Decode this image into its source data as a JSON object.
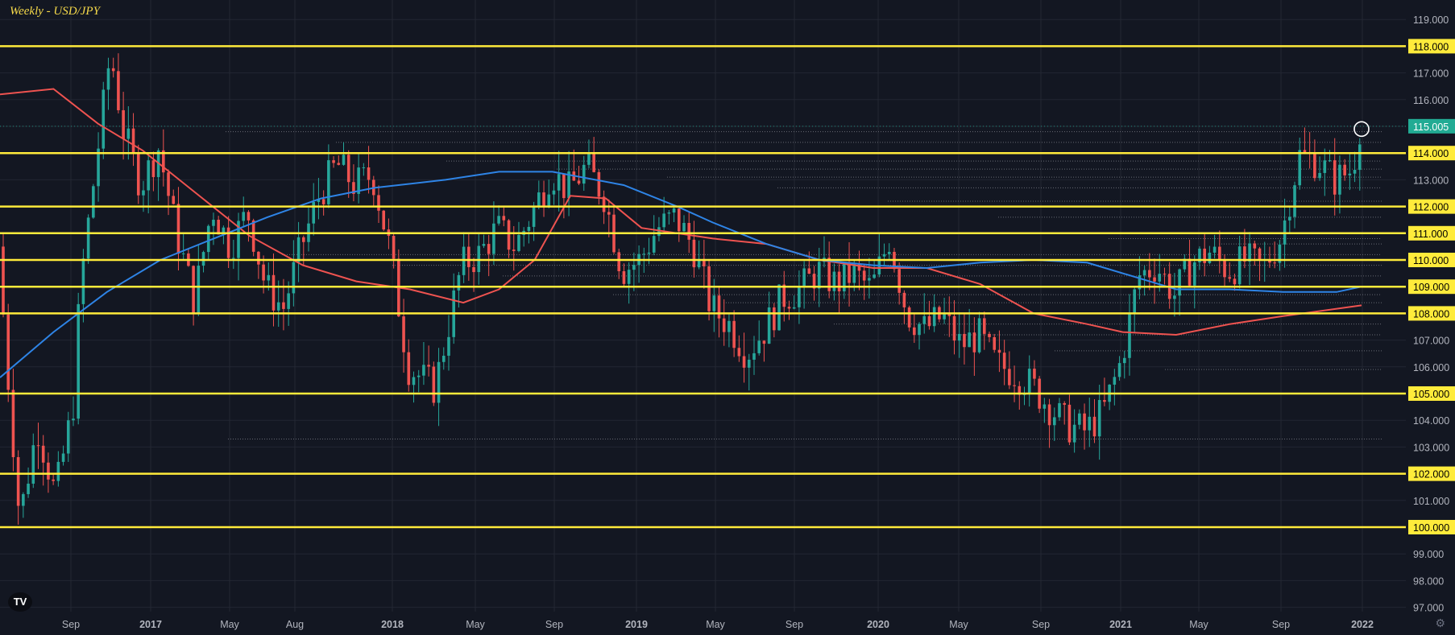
{
  "header": {
    "title": "Weekly - USD/JPY"
  },
  "logo_text": "TV",
  "chart_data": {
    "type": "candlestick",
    "title": "Weekly - USD/JPY",
    "ylim": [
      96.8,
      119.5
    ],
    "y_ticks": [
      "97.000",
      "98.000",
      "99.000",
      "100.000",
      "101.000",
      "102.000",
      "103.000",
      "104.000",
      "105.000",
      "106.000",
      "107.000",
      "108.000",
      "109.000",
      "110.000",
      "111.000",
      "112.000",
      "113.000",
      "114.000",
      "115.000",
      "116.000",
      "117.000",
      "118.000",
      "119.000"
    ],
    "x_ticks": [
      "Sep",
      "2017",
      "May",
      "Aug",
      "2018",
      "May",
      "Sep",
      "2019",
      "May",
      "Sep",
      "2020",
      "May",
      "Sep",
      "2021",
      "May",
      "Sep",
      "2022"
    ],
    "last_price": "115.005",
    "horizontal_levels": [
      118.0,
      114.0,
      112.0,
      111.0,
      110.0,
      109.0,
      108.0,
      105.0,
      102.0,
      100.0
    ],
    "dotted_levels": [
      114.8,
      114.4,
      113.7,
      113.4,
      113.1,
      112.7,
      112.2,
      111.6,
      110.8,
      110.6,
      110.2,
      109.8,
      109.4,
      108.7,
      108.4,
      107.6,
      107.2,
      106.6,
      105.9,
      103.3
    ],
    "price_path": [
      [
        0,
        110.5
      ],
      [
        0.5,
        106.0
      ],
      [
        1.2,
        100.3
      ],
      [
        2.2,
        103.8
      ],
      [
        3.2,
        101.2
      ],
      [
        4.2,
        104.5
      ],
      [
        4.6,
        109.0
      ],
      [
        5.6,
        114.2
      ],
      [
        6.3,
        117.8
      ],
      [
        7.0,
        114.9
      ],
      [
        8.0,
        112.8
      ],
      [
        9.0,
        114.2
      ],
      [
        10.0,
        111.0
      ],
      [
        11.0,
        108.5
      ],
      [
        12.0,
        112.0
      ],
      [
        13.0,
        110.5
      ],
      [
        14.0,
        111.8
      ],
      [
        15.0,
        109.0
      ],
      [
        16.0,
        108.2
      ],
      [
        17.0,
        110.5
      ],
      [
        18.0,
        112.4
      ],
      [
        19.0,
        113.6
      ],
      [
        20.0,
        112.8
      ],
      [
        21.0,
        113.2
      ],
      [
        22.0,
        110.3
      ],
      [
        23.0,
        106.0
      ],
      [
        24.5,
        105.2
      ],
      [
        26.0,
        109.8
      ],
      [
        27.0,
        110.2
      ],
      [
        28.0,
        111.2
      ],
      [
        29.0,
        110.5
      ],
      [
        30.0,
        111.8
      ],
      [
        31.0,
        113.3
      ],
      [
        32.0,
        112.6
      ],
      [
        33.0,
        113.5
      ],
      [
        34.0,
        112.4
      ],
      [
        35.0,
        109.6
      ],
      [
        36.0,
        110.0
      ],
      [
        37.0,
        111.2
      ],
      [
        38.0,
        111.6
      ],
      [
        39.0,
        110.5
      ],
      [
        40.0,
        108.2
      ],
      [
        41.0,
        107.6
      ],
      [
        42.0,
        106.5
      ],
      [
        43.0,
        107.4
      ],
      [
        44.0,
        108.6
      ],
      [
        45.0,
        108.9
      ],
      [
        46.0,
        109.6
      ],
      [
        47.0,
        109.1
      ],
      [
        48.0,
        109.5
      ],
      [
        49.0,
        108.9
      ],
      [
        50.0,
        110.8
      ],
      [
        51.0,
        108.0
      ],
      [
        52.0,
        107.4
      ],
      [
        53.0,
        107.9
      ],
      [
        54.0,
        106.8
      ],
      [
        55.0,
        107.2
      ],
      [
        56.0,
        106.1
      ],
      [
        57.0,
        105.8
      ],
      [
        58.0,
        105.3
      ],
      [
        59.0,
        104.5
      ],
      [
        60.0,
        103.8
      ],
      [
        61.0,
        103.6
      ],
      [
        62.0,
        104.3
      ],
      [
        63.0,
        106.2
      ],
      [
        64.0,
        109.4
      ],
      [
        65.0,
        109.8
      ],
      [
        66.0,
        108.7
      ],
      [
        67.0,
        109.9
      ],
      [
        68.0,
        110.3
      ],
      [
        69.0,
        109.6
      ],
      [
        70.0,
        110.0
      ],
      [
        71.0,
        109.7
      ],
      [
        72.0,
        110.9
      ],
      [
        73.0,
        113.9
      ],
      [
        74.0,
        113.7
      ],
      [
        75.0,
        113.0
      ],
      [
        76.0,
        113.4
      ],
      [
        76.4,
        115.0
      ]
    ],
    "ma_red": [
      [
        0,
        116.2
      ],
      [
        3,
        116.4
      ],
      [
        5.5,
        115.1
      ],
      [
        8,
        114.1
      ],
      [
        11,
        112.5
      ],
      [
        14,
        110.9
      ],
      [
        17,
        109.8
      ],
      [
        20,
        109.2
      ],
      [
        23,
        108.9
      ],
      [
        26,
        108.4
      ],
      [
        28,
        108.9
      ],
      [
        30,
        110.0
      ],
      [
        32,
        112.4
      ],
      [
        34,
        112.3
      ],
      [
        36,
        111.2
      ],
      [
        40,
        110.8
      ],
      [
        43,
        110.6
      ],
      [
        46,
        110.0
      ],
      [
        49,
        109.7
      ],
      [
        52,
        109.7
      ],
      [
        55,
        109.1
      ],
      [
        58,
        108.0
      ],
      [
        61,
        107.6
      ],
      [
        63,
        107.3
      ],
      [
        66,
        107.2
      ],
      [
        69,
        107.6
      ],
      [
        72,
        107.9
      ],
      [
        76.4,
        108.3
      ]
    ],
    "ma_blue": [
      [
        0,
        105.6
      ],
      [
        3,
        107.3
      ],
      [
        6,
        108.8
      ],
      [
        9,
        110.0
      ],
      [
        12,
        110.8
      ],
      [
        15,
        111.6
      ],
      [
        18,
        112.3
      ],
      [
        21,
        112.7
      ],
      [
        25,
        113.0
      ],
      [
        28,
        113.3
      ],
      [
        31,
        113.3
      ],
      [
        35,
        112.8
      ],
      [
        38,
        112.0
      ],
      [
        40,
        111.4
      ],
      [
        43,
        110.6
      ],
      [
        46,
        110.0
      ],
      [
        49,
        109.8
      ],
      [
        52,
        109.7
      ],
      [
        55,
        109.9
      ],
      [
        58,
        110.0
      ],
      [
        61,
        109.9
      ],
      [
        64,
        109.3
      ],
      [
        66,
        108.9
      ],
      [
        69,
        108.9
      ],
      [
        72,
        108.8
      ],
      [
        75,
        108.8
      ],
      [
        76.4,
        109.0
      ]
    ],
    "colors": {
      "up": "#26a69a",
      "down": "#ef5350",
      "ma_red": "#ef5350",
      "ma_blue": "#2e84e6",
      "level": "#ffeb3b",
      "background": "#131722",
      "grid": "#232733",
      "axis_text": "#b2b5be",
      "last_badge": "#22ab94"
    }
  }
}
